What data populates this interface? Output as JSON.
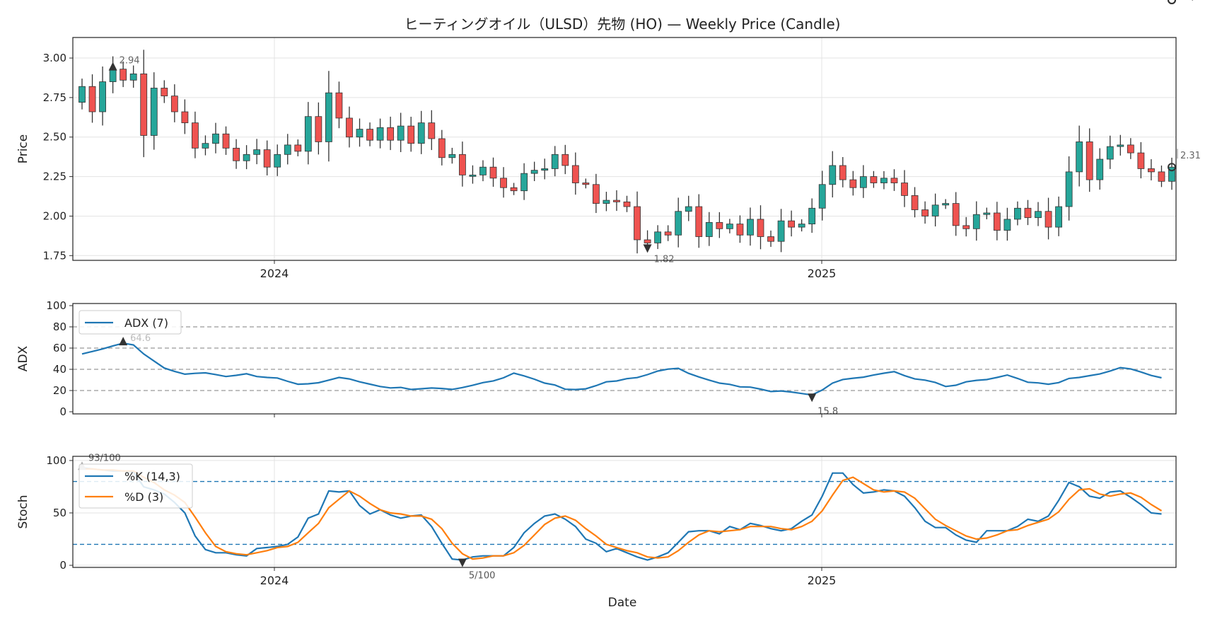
{
  "title": "ヒーティングオイル（ULSD）先物 (HO) — Weekly Price (Candle)",
  "xlabel": "Date",
  "colors": {
    "up": "#26a69a",
    "down": "#ef5350",
    "adx": "#1f77b4",
    "k": "#1f77b4",
    "d": "#ff7f0e",
    "band": "#1f77b4"
  },
  "chart_data": [
    {
      "type": "candlestick",
      "ylabel": "Price",
      "ylim": [
        1.72,
        3.13
      ],
      "yticks": [
        "1.75",
        "2.00",
        "2.25",
        "2.50",
        "2.75",
        "3.00"
      ],
      "xticks": [
        "2024",
        "2025"
      ],
      "xtick_dates": [
        "2024-01-01",
        "2025-01-01"
      ],
      "grid": true,
      "close": [
        2.82,
        2.66,
        2.85,
        2.93,
        2.86,
        2.9,
        2.51,
        2.81,
        2.76,
        2.66,
        2.59,
        2.43,
        2.46,
        2.52,
        2.43,
        2.35,
        2.39,
        2.42,
        2.31,
        2.39,
        2.45,
        2.41,
        2.63,
        2.47,
        2.78,
        2.62,
        2.5,
        2.55,
        2.48,
        2.56,
        2.48,
        2.57,
        2.46,
        2.59,
        2.49,
        2.37,
        2.39,
        2.26,
        2.26,
        2.31,
        2.24,
        2.18,
        2.16,
        2.27,
        2.29,
        2.3,
        2.39,
        2.32,
        2.21,
        2.2,
        2.08,
        2.1,
        2.09,
        2.06,
        1.85,
        1.83,
        1.9,
        1.88,
        2.03,
        2.06,
        1.87,
        1.96,
        1.92,
        1.95,
        1.88,
        1.98,
        1.87,
        1.84,
        1.97,
        1.93,
        1.95,
        2.05,
        2.2,
        2.32,
        2.23,
        2.18,
        2.25,
        2.21,
        2.24,
        2.21,
        2.13,
        2.04,
        2.0,
        2.07,
        2.08,
        1.94,
        1.92,
        2.01,
        2.02,
        1.91,
        1.98,
        2.05,
        1.99,
        2.03,
        1.93,
        2.06,
        2.28,
        2.47,
        2.23,
        2.36,
        2.44,
        2.45,
        2.4,
        2.3,
        2.28,
        2.22,
        2.31
      ],
      "annotations": {
        "high": "2.94",
        "low": "1.82",
        "last": "2.31"
      }
    },
    {
      "type": "line",
      "ylabel": "ADX",
      "ylim": [
        -2,
        102
      ],
      "yticks": [
        "0",
        "20",
        "40",
        "60",
        "80",
        "100"
      ],
      "hlines": [
        20,
        40,
        60,
        80
      ],
      "series": [
        {
          "name": "ADX (7)",
          "values": [
            54.5,
            56.8,
            59.2,
            62.1,
            64.6,
            63.0,
            54.5,
            47.8,
            41.2,
            38.1,
            35.4,
            36.2,
            36.7,
            35.1,
            33.2,
            34.3,
            35.8,
            33.2,
            32.3,
            31.8,
            28.7,
            25.9,
            26.3,
            27.3,
            29.8,
            32.3,
            30.9,
            28.2,
            26.0,
            23.8,
            22.5,
            22.9,
            21.0,
            21.7,
            22.4,
            21.9,
            21.1,
            22.8,
            24.9,
            27.5,
            29.1,
            32.0,
            36.4,
            33.8,
            30.7,
            27.0,
            25.2,
            21.2,
            20.9,
            21.6,
            24.6,
            28.2,
            29.0,
            31.2,
            32.2,
            35.0,
            38.3,
            40.2,
            40.9,
            36.2,
            32.8,
            29.8,
            27.0,
            25.8,
            23.5,
            23.2,
            21.3,
            19.1,
            19.6,
            18.6,
            17.2,
            15.8,
            20.5,
            27.0,
            30.4,
            31.6,
            32.6,
            34.6,
            36.3,
            37.8,
            34.1,
            30.9,
            29.8,
            27.6,
            23.8,
            25.0,
            28.2,
            29.6,
            30.3,
            32.3,
            34.6,
            31.4,
            27.8,
            27.2,
            25.9,
            27.5,
            31.4,
            32.3,
            34.0,
            35.6,
            38.4,
            41.6,
            40.4,
            37.5,
            34.2,
            32.0
          ]
        }
      ],
      "annotations": {
        "max": "64.6",
        "min": "15.8",
        "last": "32.0"
      }
    },
    {
      "type": "line",
      "ylabel": "Stoch",
      "ylim": [
        -2,
        104
      ],
      "yticks": [
        "0",
        "50",
        "100"
      ],
      "hlines": [
        20,
        80
      ],
      "series": [
        {
          "name": "%K (14,3)",
          "values": [
            93,
            92,
            91,
            90,
            90,
            89,
            75,
            72,
            68,
            60,
            50,
            28,
            15,
            12,
            12,
            10,
            9,
            16,
            17,
            18,
            20,
            27,
            45,
            49,
            71,
            70,
            71,
            57,
            49,
            53,
            48,
            45,
            47,
            48,
            37,
            21,
            6,
            5,
            8,
            9,
            9,
            9,
            17,
            31,
            40,
            47,
            49,
            44,
            37,
            25,
            21,
            13,
            16,
            12,
            8,
            5,
            8,
            12,
            22,
            32,
            33,
            33,
            30,
            37,
            34,
            40,
            38,
            35,
            33,
            35,
            42,
            48,
            66,
            88,
            88,
            77,
            69,
            70,
            72,
            71,
            66,
            55,
            42,
            36,
            36,
            29,
            24,
            22,
            33,
            33,
            33,
            37,
            44,
            42,
            47,
            62,
            79,
            75,
            66,
            64,
            70,
            71,
            65,
            58,
            50,
            49
          ]
        },
        {
          "name": "%D (3)",
          "values": [
            92,
            92,
            91,
            91,
            90,
            90,
            84,
            79,
            72,
            67,
            60,
            46,
            31,
            18,
            13,
            11,
            10,
            12,
            14,
            17,
            18,
            22,
            31,
            40,
            55,
            63,
            71,
            66,
            59,
            53,
            50,
            49,
            47,
            47,
            44,
            35,
            21,
            11,
            6,
            7,
            9,
            9,
            12,
            19,
            29,
            39,
            45,
            47,
            43,
            35,
            28,
            20,
            17,
            14,
            12,
            8,
            7,
            8,
            14,
            22,
            29,
            33,
            32,
            33,
            34,
            37,
            37,
            37,
            35,
            34,
            37,
            42,
            52,
            67,
            81,
            84,
            78,
            72,
            70,
            71,
            70,
            64,
            54,
            44,
            38,
            33,
            28,
            25,
            26,
            29,
            33,
            34,
            38,
            41,
            44,
            51,
            63,
            72,
            73,
            68,
            66,
            68,
            69,
            65,
            58,
            52
          ]
        }
      ],
      "annotations": {
        "max": "93/100",
        "min": "5/100",
        "last": "49/100"
      }
    }
  ]
}
